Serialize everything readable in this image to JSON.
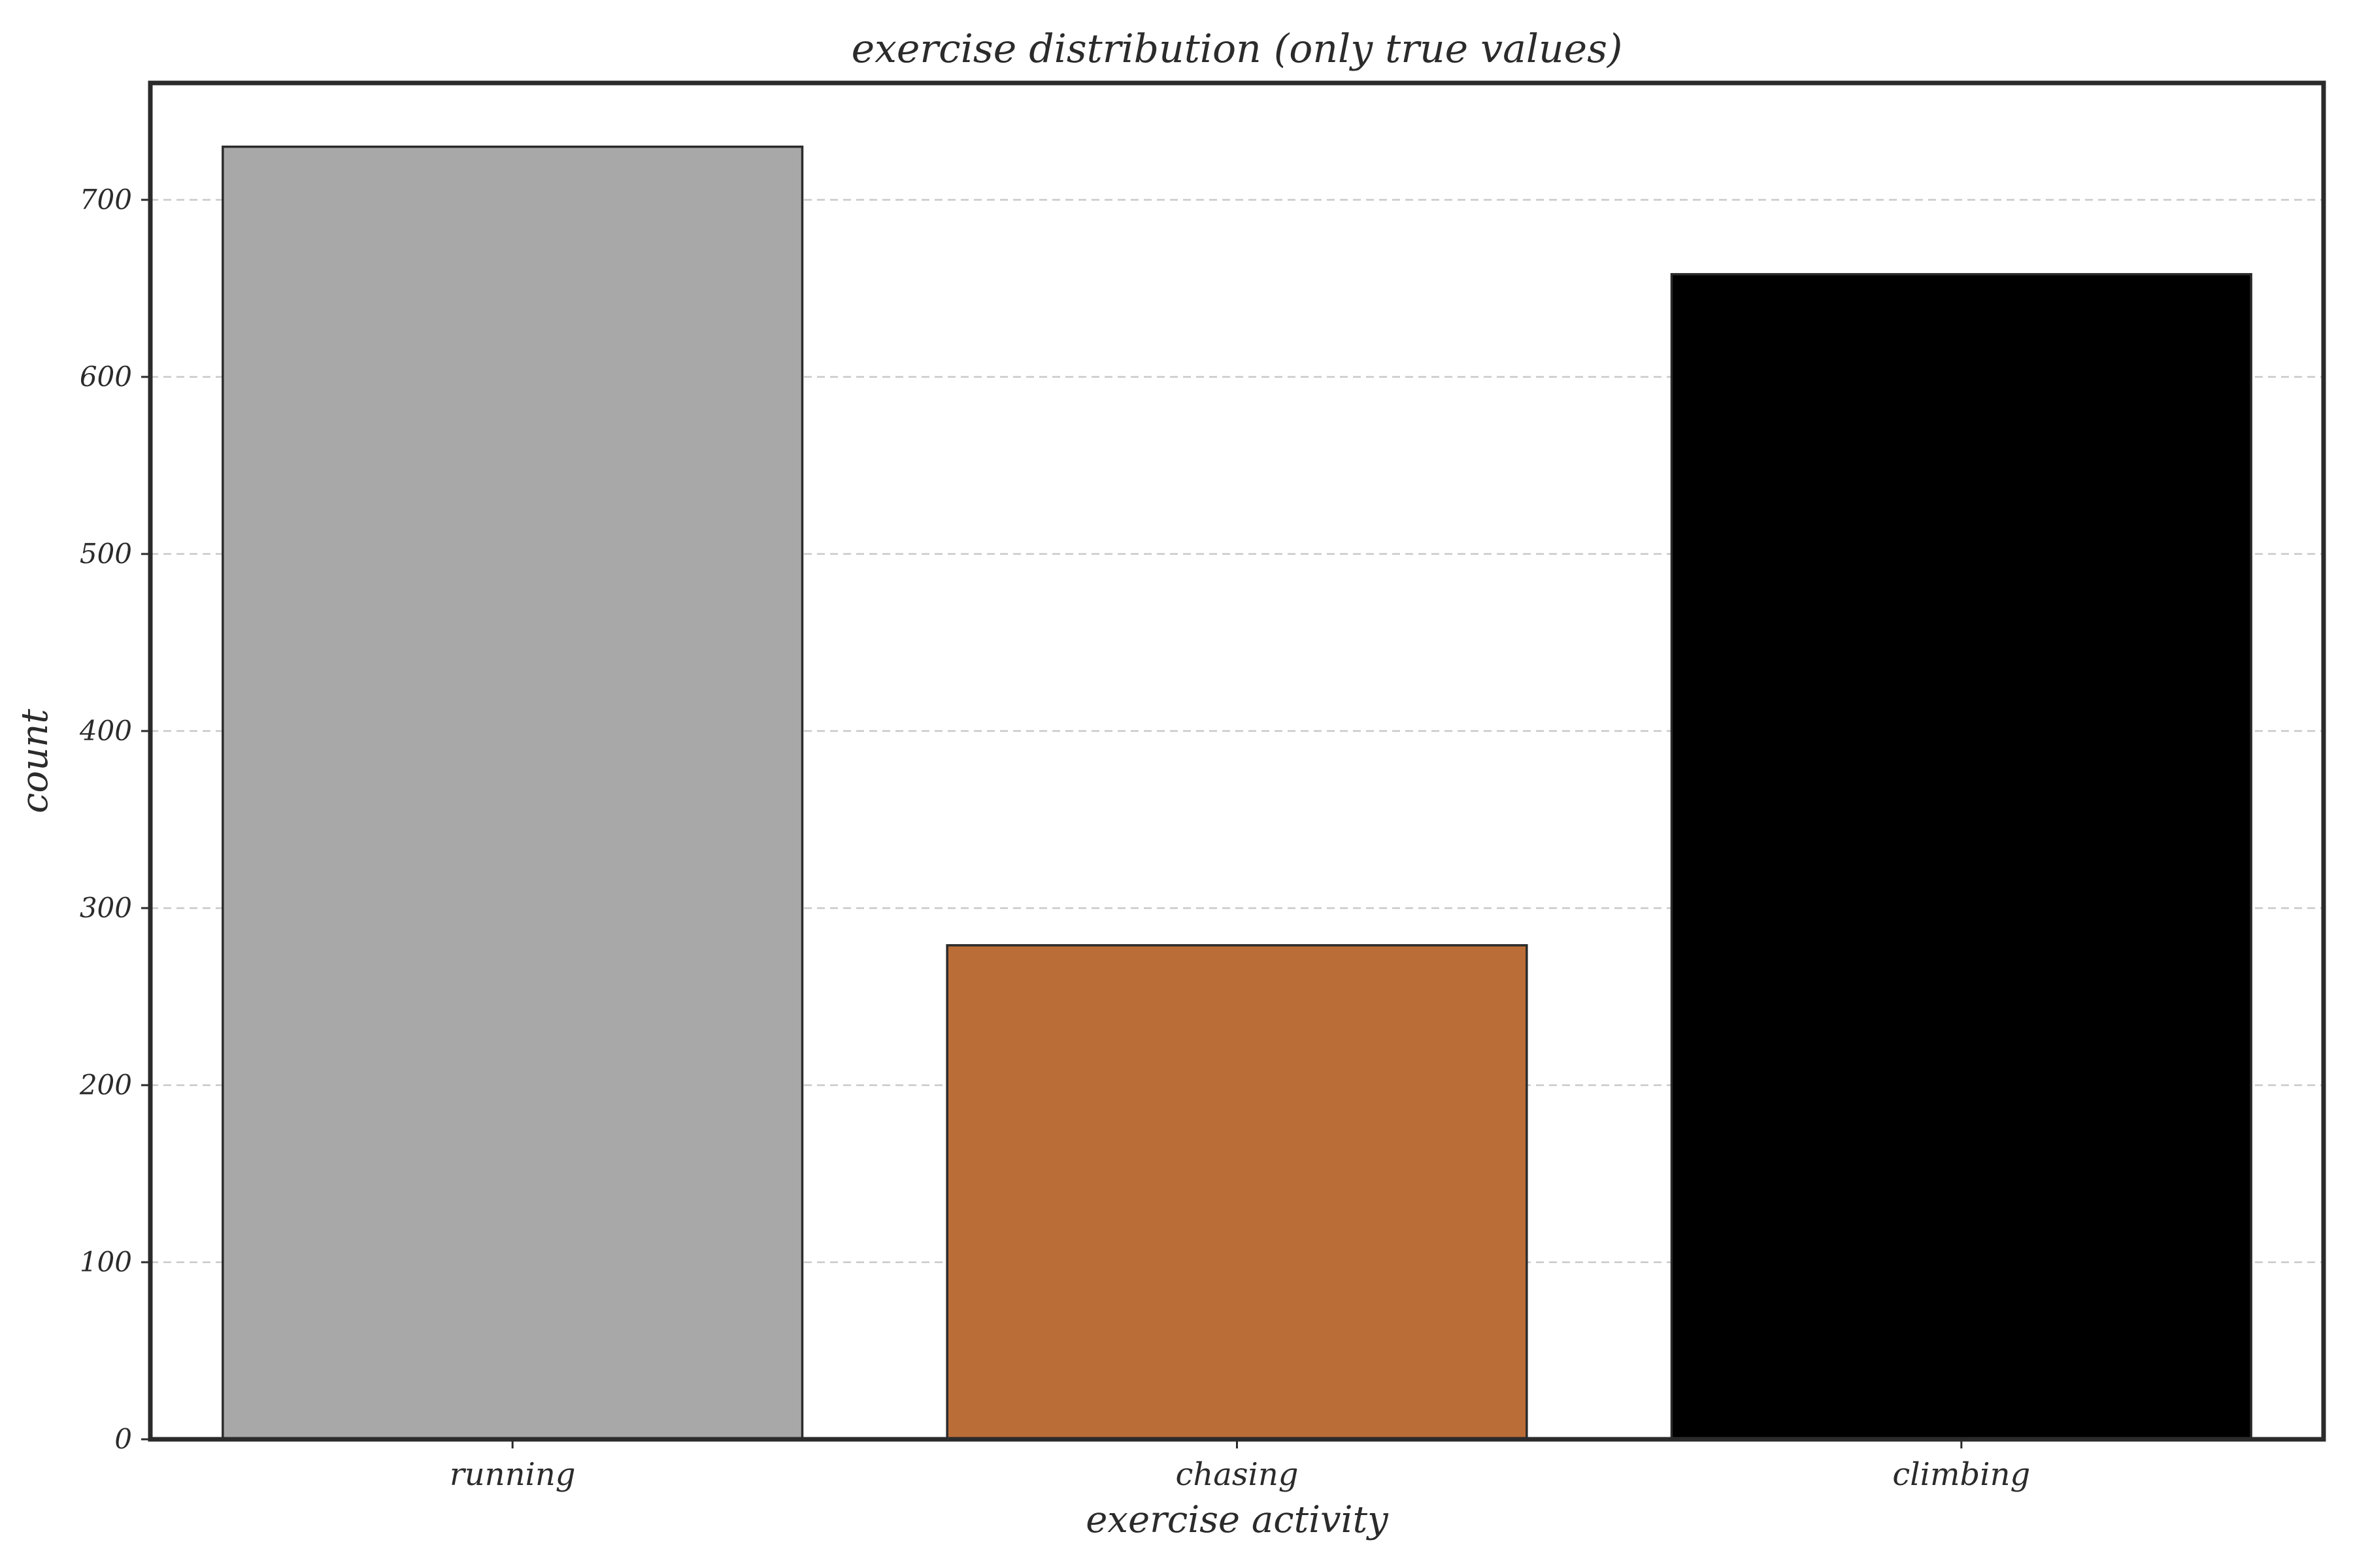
{
  "chart_data": {
    "type": "bar",
    "title": "exercise distribution (only true values)",
    "xlabel": "exercise activity",
    "ylabel": "count",
    "categories": [
      "running",
      "chasing",
      "climbing"
    ],
    "values": [
      730,
      279,
      658
    ],
    "colors": [
      "#a8a8a8",
      "#bb6d37",
      "#000000"
    ],
    "edge_color": "#2b2b2b",
    "ylim": [
      0,
      766
    ],
    "yticks": [
      0,
      100,
      200,
      300,
      400,
      500,
      600,
      700
    ],
    "ytick_labels": [
      "0",
      "100",
      "200",
      "300",
      "400",
      "500",
      "600",
      "700"
    ],
    "grid": "y-dashed",
    "legend": "none"
  }
}
